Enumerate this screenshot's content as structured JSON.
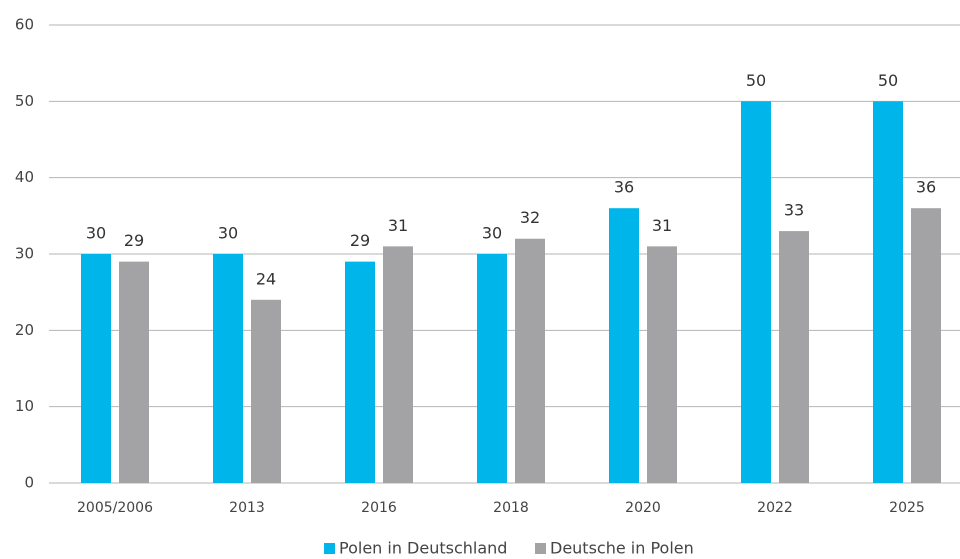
{
  "chart_data": {
    "type": "bar",
    "categories": [
      "2005/2006",
      "2013",
      "2016",
      "2018",
      "2020",
      "2022",
      "2025"
    ],
    "series": [
      {
        "name": "Polen in Deutschland",
        "color": "#00b5e9",
        "values": [
          30,
          30,
          29,
          30,
          36,
          50,
          50
        ]
      },
      {
        "name": "Deutsche in Polen",
        "color": "#a3a3a6",
        "values": [
          29,
          24,
          31,
          32,
          31,
          33,
          36
        ]
      }
    ],
    "ylim": [
      0,
      60
    ],
    "yticks": [
      0,
      10,
      20,
      30,
      40,
      50,
      60
    ],
    "grid": true,
    "legend": "bottom"
  }
}
